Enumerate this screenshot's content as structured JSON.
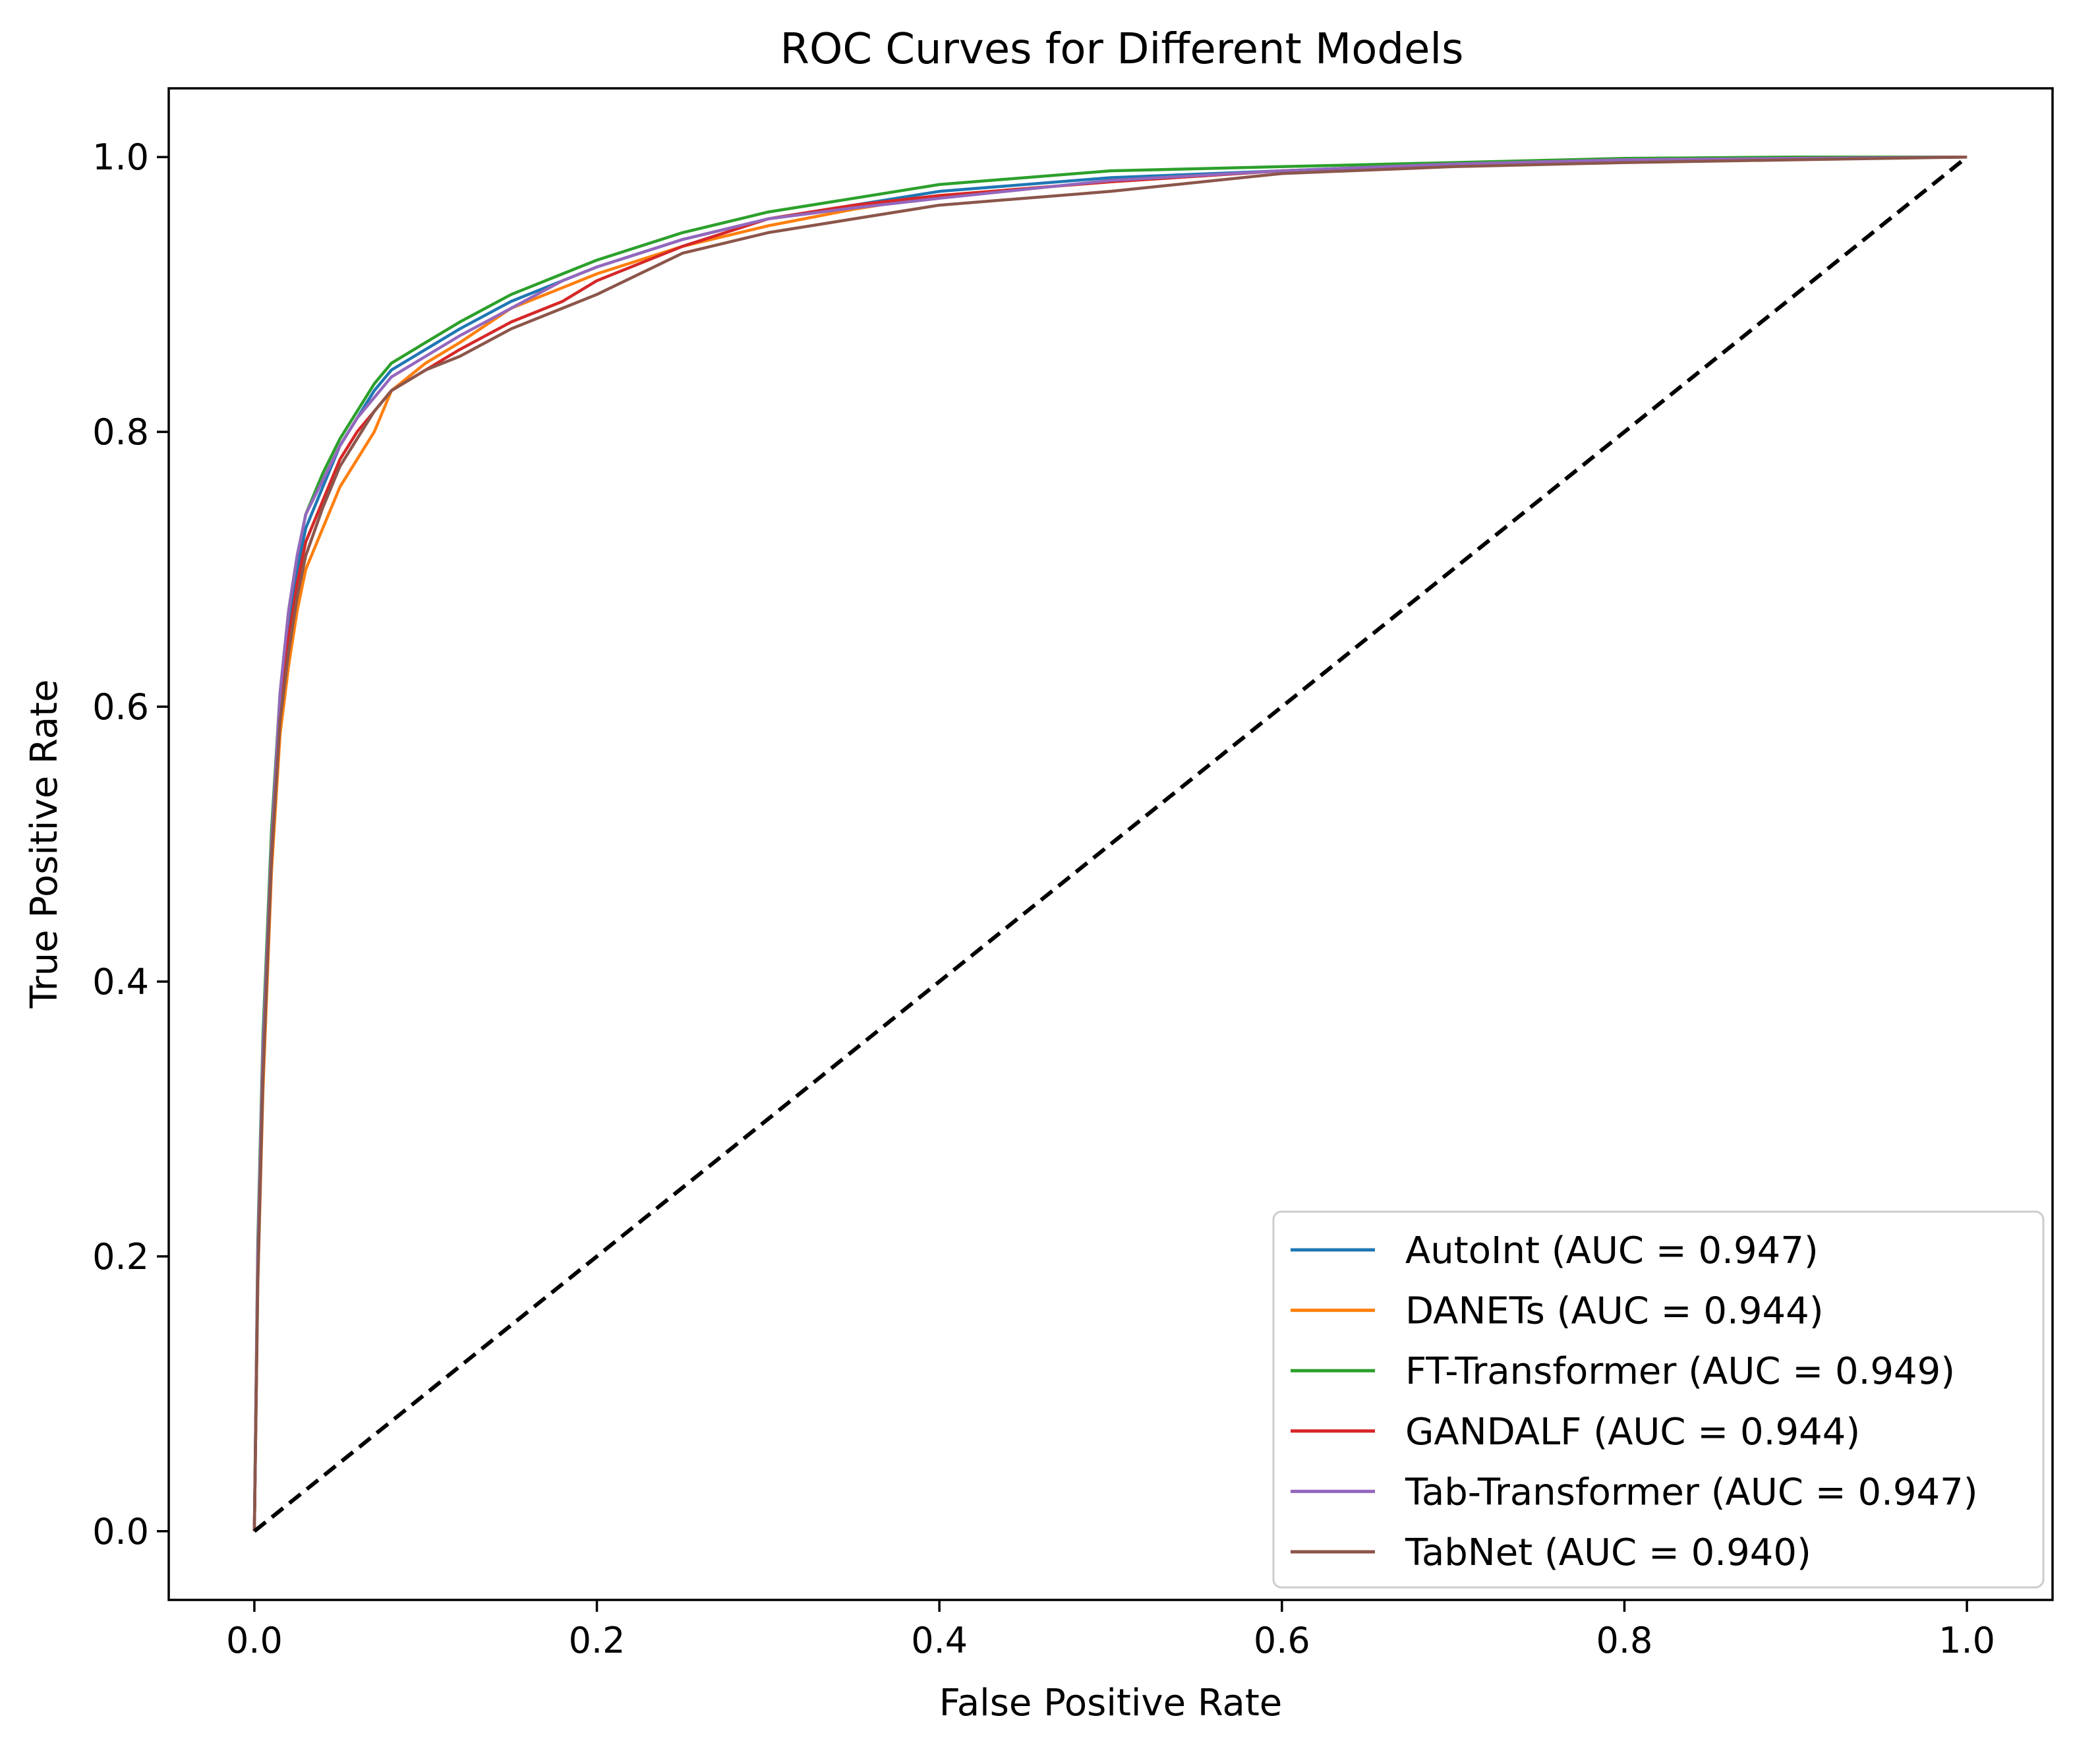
{
  "chart_data": {
    "type": "line",
    "title": "ROC Curves for Different Models",
    "xlabel": "False Positive Rate",
    "ylabel": "True Positive Rate",
    "xlim": [
      -0.05,
      1.05
    ],
    "ylim": [
      -0.05,
      1.05
    ],
    "xticks": [
      0.0,
      0.2,
      0.4,
      0.6,
      0.8,
      1.0
    ],
    "xtick_labels": [
      "0.0",
      "0.2",
      "0.4",
      "0.6",
      "0.8",
      "1.0"
    ],
    "yticks": [
      0.0,
      0.2,
      0.4,
      0.6,
      0.8,
      1.0
    ],
    "ytick_labels": [
      "0.0",
      "0.2",
      "0.4",
      "0.6",
      "0.8",
      "1.0"
    ],
    "grid": false,
    "legend_position": "lower-right",
    "diagonal": {
      "x": [
        0,
        1
      ],
      "y": [
        0,
        1
      ],
      "style": "dashed",
      "color": "#000000"
    },
    "series": [
      {
        "name": "AutoInt (AUC = 0.947)",
        "color": "#1f77b4",
        "x": [
          0,
          0.002,
          0.005,
          0.01,
          0.015,
          0.02,
          0.025,
          0.03,
          0.04,
          0.05,
          0.06,
          0.07,
          0.08,
          0.1,
          0.12,
          0.15,
          0.18,
          0.2,
          0.25,
          0.3,
          0.35,
          0.4,
          0.5,
          0.6,
          0.7,
          0.8,
          0.9,
          1.0
        ],
        "y": [
          0,
          0.2,
          0.35,
          0.5,
          0.6,
          0.66,
          0.7,
          0.73,
          0.76,
          0.79,
          0.81,
          0.83,
          0.845,
          0.86,
          0.875,
          0.895,
          0.91,
          0.92,
          0.94,
          0.955,
          0.965,
          0.975,
          0.985,
          0.99,
          0.995,
          0.998,
          0.999,
          1.0
        ]
      },
      {
        "name": "DANETs (AUC = 0.944)",
        "color": "#ff7f0e",
        "x": [
          0,
          0.002,
          0.005,
          0.01,
          0.015,
          0.02,
          0.025,
          0.03,
          0.04,
          0.05,
          0.06,
          0.07,
          0.08,
          0.1,
          0.12,
          0.15,
          0.18,
          0.2,
          0.25,
          0.3,
          0.35,
          0.4,
          0.5,
          0.6,
          0.7,
          0.8,
          0.9,
          1.0
        ],
        "y": [
          0,
          0.18,
          0.32,
          0.48,
          0.58,
          0.63,
          0.67,
          0.7,
          0.73,
          0.76,
          0.78,
          0.8,
          0.83,
          0.85,
          0.865,
          0.89,
          0.905,
          0.915,
          0.935,
          0.95,
          0.962,
          0.972,
          0.982,
          0.99,
          0.994,
          0.997,
          0.999,
          1.0
        ]
      },
      {
        "name": "FT-Transformer (AUC = 0.949)",
        "color": "#2ca02c",
        "x": [
          0,
          0.002,
          0.005,
          0.01,
          0.015,
          0.02,
          0.025,
          0.03,
          0.04,
          0.05,
          0.06,
          0.07,
          0.08,
          0.1,
          0.12,
          0.15,
          0.18,
          0.2,
          0.25,
          0.3,
          0.35,
          0.4,
          0.5,
          0.6,
          0.7,
          0.8,
          0.9,
          1.0
        ],
        "y": [
          0,
          0.21,
          0.36,
          0.51,
          0.61,
          0.67,
          0.71,
          0.74,
          0.77,
          0.795,
          0.815,
          0.835,
          0.85,
          0.865,
          0.88,
          0.9,
          0.915,
          0.925,
          0.945,
          0.96,
          0.97,
          0.98,
          0.99,
          0.993,
          0.996,
          0.999,
          1.0,
          1.0
        ]
      },
      {
        "name": "GANDALF (AUC = 0.944)",
        "color": "#d62728",
        "x": [
          0,
          0.002,
          0.005,
          0.01,
          0.015,
          0.02,
          0.025,
          0.03,
          0.04,
          0.05,
          0.06,
          0.07,
          0.08,
          0.1,
          0.12,
          0.15,
          0.18,
          0.2,
          0.25,
          0.3,
          0.35,
          0.4,
          0.5,
          0.6,
          0.7,
          0.8,
          0.9,
          1.0
        ],
        "y": [
          0,
          0.19,
          0.34,
          0.49,
          0.6,
          0.65,
          0.69,
          0.72,
          0.75,
          0.78,
          0.8,
          0.815,
          0.83,
          0.845,
          0.86,
          0.88,
          0.895,
          0.91,
          0.935,
          0.955,
          0.965,
          0.972,
          0.982,
          0.99,
          0.994,
          0.997,
          0.999,
          1.0
        ]
      },
      {
        "name": "Tab-Transformer (AUC = 0.947)",
        "color": "#9467bd",
        "x": [
          0,
          0.002,
          0.005,
          0.01,
          0.015,
          0.02,
          0.025,
          0.03,
          0.04,
          0.05,
          0.06,
          0.07,
          0.08,
          0.1,
          0.12,
          0.15,
          0.18,
          0.2,
          0.25,
          0.3,
          0.35,
          0.4,
          0.5,
          0.6,
          0.7,
          0.8,
          0.9,
          1.0
        ],
        "y": [
          0,
          0.2,
          0.35,
          0.5,
          0.61,
          0.67,
          0.71,
          0.74,
          0.765,
          0.79,
          0.81,
          0.825,
          0.84,
          0.855,
          0.87,
          0.89,
          0.91,
          0.92,
          0.94,
          0.955,
          0.963,
          0.97,
          0.983,
          0.99,
          0.995,
          0.998,
          0.999,
          1.0
        ]
      },
      {
        "name": "TabNet (AUC = 0.940)",
        "color": "#8c564b",
        "x": [
          0,
          0.002,
          0.005,
          0.01,
          0.015,
          0.02,
          0.025,
          0.03,
          0.04,
          0.05,
          0.06,
          0.07,
          0.08,
          0.1,
          0.12,
          0.15,
          0.18,
          0.2,
          0.25,
          0.3,
          0.35,
          0.4,
          0.5,
          0.6,
          0.7,
          0.8,
          0.9,
          1.0
        ],
        "y": [
          0,
          0.18,
          0.33,
          0.49,
          0.59,
          0.64,
          0.68,
          0.71,
          0.745,
          0.775,
          0.795,
          0.815,
          0.83,
          0.845,
          0.855,
          0.875,
          0.89,
          0.9,
          0.93,
          0.945,
          0.955,
          0.965,
          0.975,
          0.988,
          0.993,
          0.996,
          0.998,
          1.0
        ]
      }
    ]
  }
}
